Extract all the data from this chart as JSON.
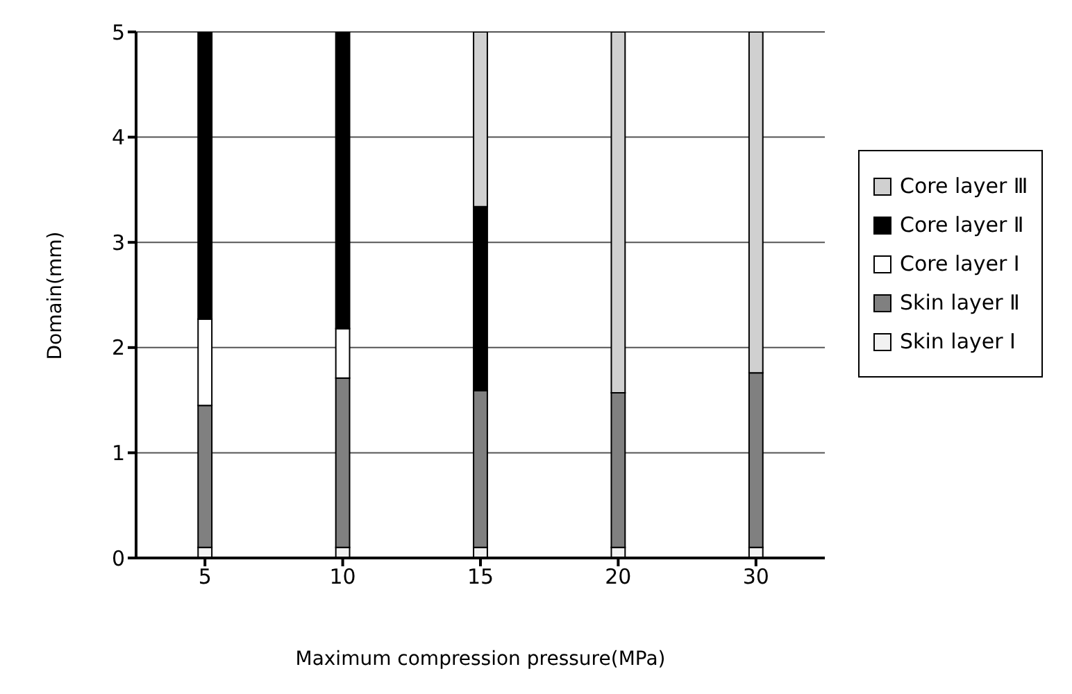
{
  "chart_data": {
    "type": "bar",
    "stacked": true,
    "xlabel": "Maximum compression pressure(MPa)",
    "ylabel": "Domain(mm)",
    "categories": [
      "5",
      "10",
      "15",
      "20",
      "30"
    ],
    "series": [
      {
        "name": "Skin layer Ⅰ",
        "color": "#f2f2f2",
        "values": [
          0.1,
          0.1,
          0.1,
          0.1,
          0.1
        ]
      },
      {
        "name": "Skin layer Ⅱ",
        "color": "#808080",
        "values": [
          1.35,
          1.61,
          1.49,
          1.47,
          1.66
        ]
      },
      {
        "name": "Core layer Ⅰ",
        "color": "#ffffff",
        "values": [
          0.82,
          0.47,
          0,
          0,
          0
        ]
      },
      {
        "name": "Core layer Ⅱ",
        "color": "#000000",
        "values": [
          2.73,
          2.82,
          1.75,
          0,
          0
        ]
      },
      {
        "name": "Core layer Ⅲ",
        "color": "#d0d0d0",
        "values": [
          0,
          0,
          1.66,
          3.43,
          3.24
        ]
      }
    ],
    "ylim": [
      0,
      5
    ],
    "yticks": [
      0,
      1,
      2,
      3,
      4,
      5
    ],
    "grid": "y",
    "legend": "right"
  }
}
